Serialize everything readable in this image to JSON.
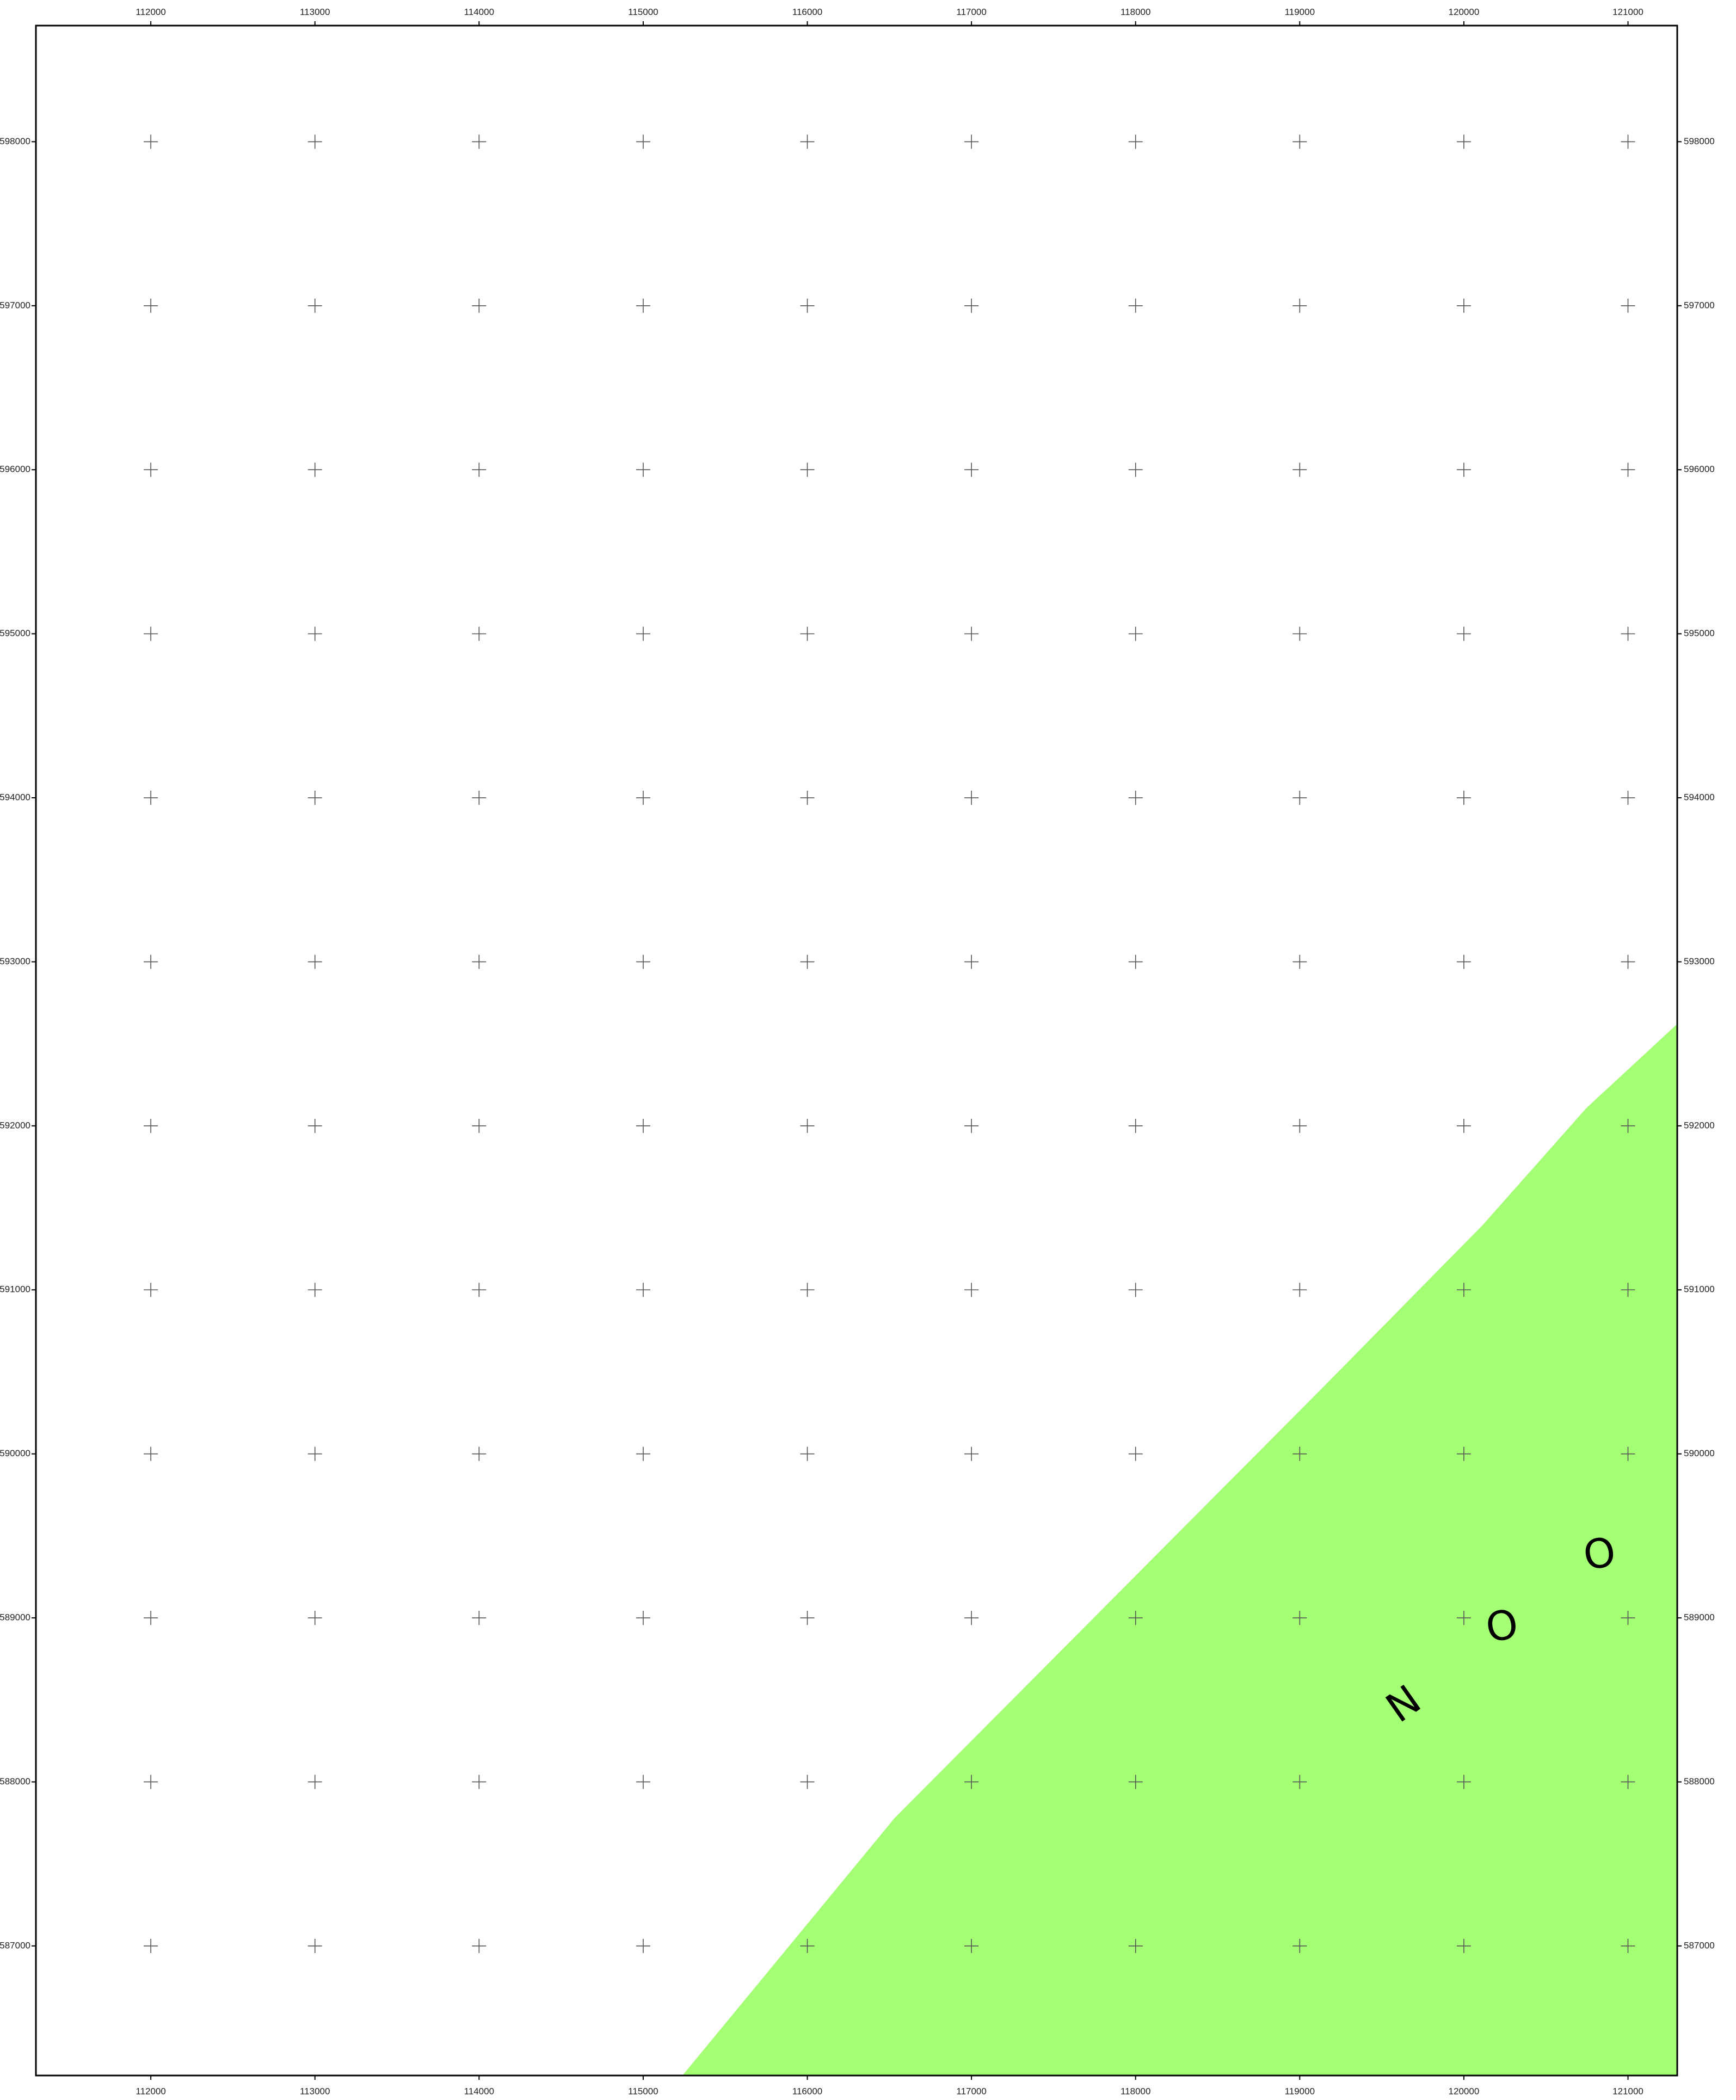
{
  "map": {
    "xlim": [
      111300,
      121300
    ],
    "ylim": [
      586210,
      598708
    ],
    "xticks": [
      112000,
      113000,
      114000,
      115000,
      116000,
      117000,
      118000,
      119000,
      120000,
      121000
    ],
    "yticks": [
      598000,
      597000,
      596000,
      595000,
      594000,
      593000,
      592000,
      591000,
      590000,
      589000,
      588000,
      587000
    ],
    "zone": {
      "color": "#a4ff74",
      "polygon": [
        [
          121300,
          592621
        ],
        [
          120747,
          592109
        ],
        [
          120113,
          591393
        ],
        [
          119136,
          590400
        ],
        [
          116532,
          587780
        ],
        [
          115239,
          586210
        ],
        [
          121300,
          586210
        ]
      ]
    },
    "labels": [
      {
        "text": "N",
        "x": 119641,
        "y": 588463
      },
      {
        "text": "O",
        "x": 120235,
        "y": 588935
      },
      {
        "text": "O",
        "x": 120829,
        "y": 589375
      }
    ]
  }
}
